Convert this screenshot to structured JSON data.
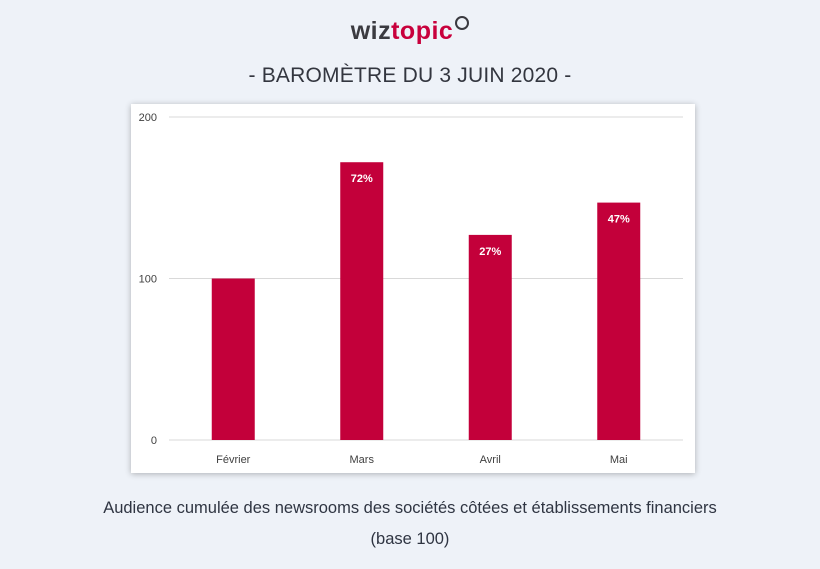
{
  "logo": {
    "part1": "wiz",
    "part2": "topic"
  },
  "headline": "- BAROMÈTRE DU 3 JUIN 2020 -",
  "caption": {
    "line1": "Audience cumulée des newsrooms des sociétés côtées et établissements financiers",
    "line2": "(base 100)"
  },
  "colors": {
    "bar": "#c3003a",
    "grid": "#d9d9d9",
    "text": "#404040",
    "brand": "#c8003c"
  },
  "chart_data": {
    "type": "bar",
    "categories": [
      "Février",
      "Mars",
      "Avril",
      "Mai"
    ],
    "values": [
      100,
      172,
      127,
      147
    ],
    "data_labels": [
      "",
      "72%",
      "27%",
      "47%"
    ],
    "ylim": [
      0,
      200
    ],
    "yticks": [
      0,
      100,
      200
    ],
    "grid": true,
    "title": "",
    "xlabel": "",
    "ylabel": ""
  }
}
